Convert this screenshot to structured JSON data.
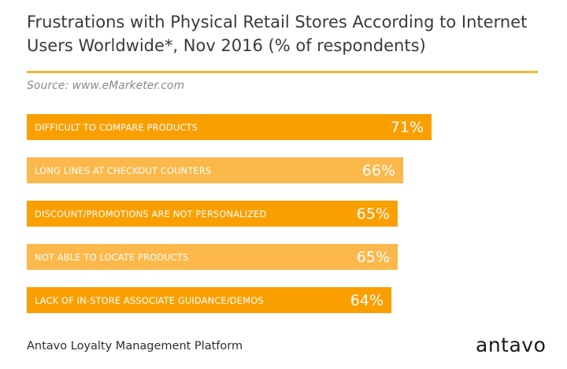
{
  "header": {
    "title": "Frustrations with Physical Retail Stores According to Internet Users Worldwide*, Nov 2016 (% of respondents)",
    "source": "Source: www.eMarketer.com"
  },
  "footer": {
    "platform": "Antavo Loyalty Management Platform",
    "logo": "antavo"
  },
  "colors": {
    "bar_primary": "#fa9f00",
    "bar_secondary": "#fcb84a",
    "rule": "#f6b333"
  },
  "chart_data": {
    "type": "bar",
    "orientation": "horizontal",
    "categories": [
      "DIFFICULT TO COMPARE PRODUCTS",
      "LONG LINES AT CHECKOUT COUNTERS",
      "DISCOUNT/PROMOTIONS ARE NOT PERSONALIZED",
      "NOT ABLE TO LOCATE PRODUCTS",
      "LACK OF IN-STORE ASSOCIATE GUIDANCE/DEMOS"
    ],
    "values": [
      71,
      66,
      65,
      65,
      64
    ],
    "value_labels": [
      "71%",
      "66%",
      "65%",
      "65%",
      "64%"
    ],
    "title": "Frustrations with Physical Retail Stores According to Internet Users Worldwide*, Nov 2016 (% of respondents)",
    "xlabel": "",
    "ylabel": "",
    "grid": false
  }
}
